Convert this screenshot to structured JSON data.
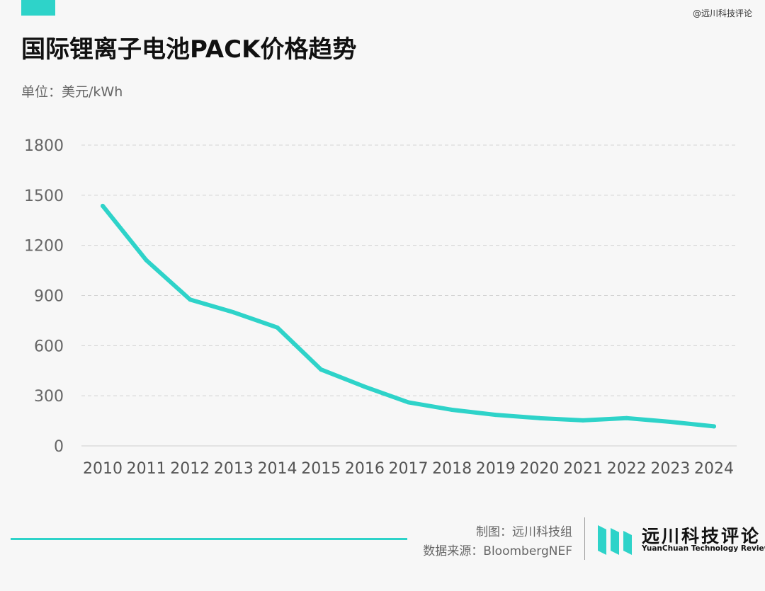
{
  "header": {
    "title": "国际锂离子电池PACK价格趋势",
    "unit": "单位：美元/kWh",
    "watermark": "@远川科技评论"
  },
  "chart_data": {
    "type": "line",
    "title": "国际锂离子电池PACK价格趋势",
    "ylabel": "单位：美元/kWh",
    "xlabel": "",
    "ylim": [
      0,
      1800
    ],
    "y_ticks": [
      0,
      300,
      600,
      900,
      1200,
      1500,
      1800
    ],
    "grid": true,
    "categories": [
      "2010",
      "2011",
      "2012",
      "2013",
      "2014",
      "2015",
      "2016",
      "2017",
      "2018",
      "2019",
      "2020",
      "2021",
      "2022",
      "2023",
      "2024"
    ],
    "series": [
      {
        "values": [
          1436,
          1111,
          876,
          799,
          708,
          457,
          354,
          261,
          216,
          186,
          166,
          153,
          166,
          144,
          117
        ],
        "color": "#2ed3c9"
      }
    ]
  },
  "footer": {
    "credit_maker": "制图：远川科技组",
    "credit_source": "数据来源：BloombergNEF",
    "logo_cn": "远川科技评论",
    "logo_en": "YuanChuan Technology Review"
  }
}
